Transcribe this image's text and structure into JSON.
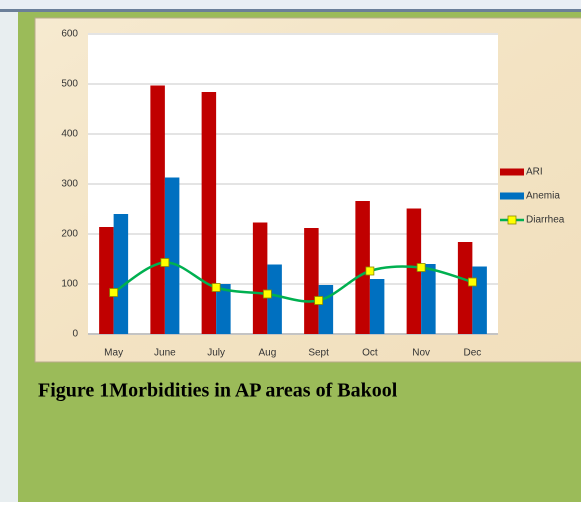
{
  "chart_data": {
    "type": "bar",
    "categories": [
      "May",
      "June",
      "July",
      "Aug",
      "Sept",
      "Oct",
      "Nov",
      "Dec"
    ],
    "series": [
      {
        "name": "ARI",
        "color": "#c00000",
        "values": [
          214,
          497,
          484,
          223,
          212,
          266,
          251,
          184
        ]
      },
      {
        "name": "Anemia",
        "color": "#0070c0",
        "values": [
          240,
          313,
          100,
          139,
          98,
          110,
          140,
          135
        ]
      },
      {
        "name": "Diarrhea",
        "color": "#00b050",
        "type": "line",
        "marker_color": "#ffff00",
        "values": [
          83,
          143,
          93,
          80,
          67,
          126,
          133,
          104
        ]
      }
    ],
    "ylim": [
      0,
      600
    ],
    "yticks": [
      0,
      100,
      200,
      300,
      400,
      500,
      600
    ],
    "grid": true,
    "legend": "right"
  },
  "caption": "Figure 1Morbidities in AP areas of Bakool"
}
